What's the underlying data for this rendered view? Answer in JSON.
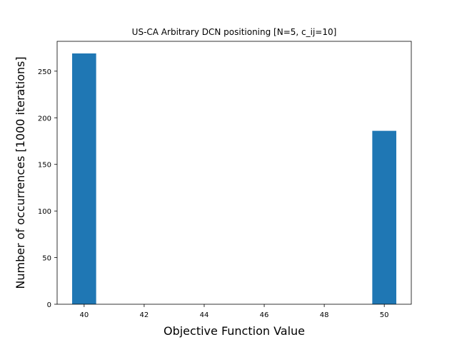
{
  "chart_data": {
    "type": "bar",
    "title": "US-CA Arbitrary DCN positioning [N=5, c_ij=10]",
    "xlabel": "Objective Function Value",
    "ylabel": "Number of occurrences [1000 iterations]",
    "xlim": [
      39.1,
      50.9
    ],
    "ylim": [
      0,
      282
    ],
    "x_ticks": [
      40,
      42,
      44,
      46,
      48,
      50
    ],
    "y_ticks": [
      0,
      50,
      100,
      150,
      200,
      250
    ],
    "bar_width": 0.8,
    "bars": [
      {
        "x": 40,
        "value": 269
      },
      {
        "x": 50,
        "value": 186
      }
    ],
    "bar_color": "#1f77b4",
    "grid": false
  }
}
